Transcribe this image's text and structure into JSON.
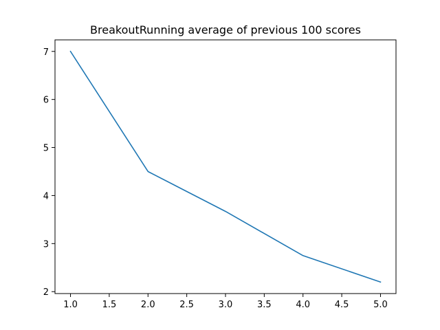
{
  "chart_data": {
    "type": "line",
    "title": "BreakoutRunning average of previous 100 scores",
    "xlabel": "",
    "ylabel": "",
    "x": [
      1.0,
      2.0,
      3.0,
      4.0,
      5.0
    ],
    "series": [
      {
        "values": [
          7.0,
          4.5,
          3.67,
          2.75,
          2.2
        ],
        "color": "#1f77b4"
      }
    ],
    "xlim": [
      0.8,
      5.2
    ],
    "ylim": [
      1.96,
      7.24
    ],
    "xticks": [
      1.0,
      1.5,
      2.0,
      2.5,
      3.0,
      3.5,
      4.0,
      4.5,
      5.0
    ],
    "xtick_labels": [
      "1.0",
      "1.5",
      "2.0",
      "2.5",
      "3.0",
      "3.5",
      "4.0",
      "4.5",
      "5.0"
    ],
    "yticks": [
      2,
      3,
      4,
      5,
      6,
      7
    ],
    "ytick_labels": [
      "2",
      "3",
      "4",
      "5",
      "6",
      "7"
    ],
    "grid": false,
    "legend": "none"
  }
}
